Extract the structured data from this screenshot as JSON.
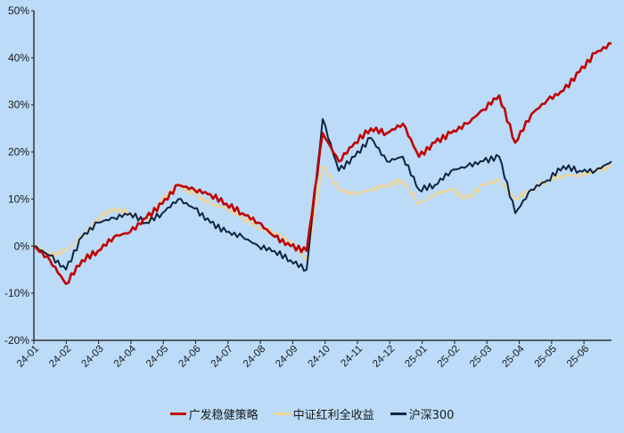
{
  "chart_data": {
    "type": "line",
    "title": "",
    "xlabel": "",
    "ylabel": "",
    "ylim": [
      -0.2,
      0.5
    ],
    "y_ticks": [
      "50%",
      "40%",
      "30%",
      "20%",
      "10%",
      "0%",
      "-10%",
      "-20%"
    ],
    "x_ticks": [
      "24-01",
      "24-02",
      "24-03",
      "24-04",
      "24-05",
      "24-06",
      "24-07",
      "24-08",
      "24-09",
      "24-10",
      "24-11",
      "24-12",
      "25-01",
      "25-02",
      "25-03",
      "25-04",
      "25-05",
      "25-06"
    ],
    "grid": false,
    "legend_position": "bottom",
    "x": [
      "24-01",
      "24-01b",
      "24-02",
      "24-02b",
      "24-03",
      "24-03b",
      "24-04",
      "24-04b",
      "24-05",
      "24-05b",
      "24-06",
      "24-06b",
      "24-07",
      "24-07b",
      "24-08",
      "24-08b",
      "24-09",
      "24-09b",
      "24-10",
      "24-10b",
      "24-11",
      "24-11b",
      "24-12",
      "24-12b",
      "25-01",
      "25-01b",
      "25-02",
      "25-02b",
      "25-03",
      "25-03b",
      "25-04",
      "25-04b",
      "25-05",
      "25-05b",
      "25-06",
      "25-06b",
      "end"
    ],
    "series": [
      {
        "name": "广发稳健策略",
        "color": "#c00000",
        "values": [
          0.0,
          -0.03,
          -0.08,
          -0.03,
          -0.01,
          0.02,
          0.03,
          0.06,
          0.09,
          0.13,
          0.12,
          0.11,
          0.09,
          0.07,
          0.05,
          0.02,
          0.0,
          -0.01,
          0.24,
          0.18,
          0.22,
          0.25,
          0.24,
          0.26,
          0.19,
          0.22,
          0.24,
          0.26,
          0.29,
          0.32,
          0.22,
          0.28,
          0.31,
          0.33,
          0.37,
          0.41,
          0.43
        ]
      },
      {
        "name": "中证红利全收益",
        "color": "#f3d48f",
        "values": [
          0.0,
          -0.02,
          -0.01,
          0.02,
          0.06,
          0.08,
          0.07,
          0.05,
          0.1,
          0.13,
          0.11,
          0.09,
          0.08,
          0.06,
          0.04,
          0.03,
          0.01,
          -0.03,
          0.17,
          0.12,
          0.11,
          0.12,
          0.13,
          0.14,
          0.09,
          0.11,
          0.12,
          0.1,
          0.13,
          0.14,
          0.1,
          0.12,
          0.14,
          0.15,
          0.15,
          0.16,
          0.17
        ]
      },
      {
        "name": "沪深300",
        "color": "#0f2340",
        "values": [
          0.0,
          -0.02,
          -0.05,
          0.02,
          0.05,
          0.06,
          0.07,
          0.05,
          0.07,
          0.1,
          0.08,
          0.05,
          0.03,
          0.02,
          0.0,
          -0.01,
          -0.03,
          -0.05,
          0.27,
          0.16,
          0.19,
          0.23,
          0.18,
          0.19,
          0.12,
          0.13,
          0.16,
          0.17,
          0.18,
          0.19,
          0.07,
          0.12,
          0.14,
          0.17,
          0.16,
          0.16,
          0.18
        ]
      }
    ]
  },
  "legend": {
    "items": [
      {
        "label": "广发稳健策略",
        "color": "#c00000"
      },
      {
        "label": "中证红利全收益",
        "color": "#f3d48f"
      },
      {
        "label": "沪深300",
        "color": "#0f2340"
      }
    ]
  }
}
